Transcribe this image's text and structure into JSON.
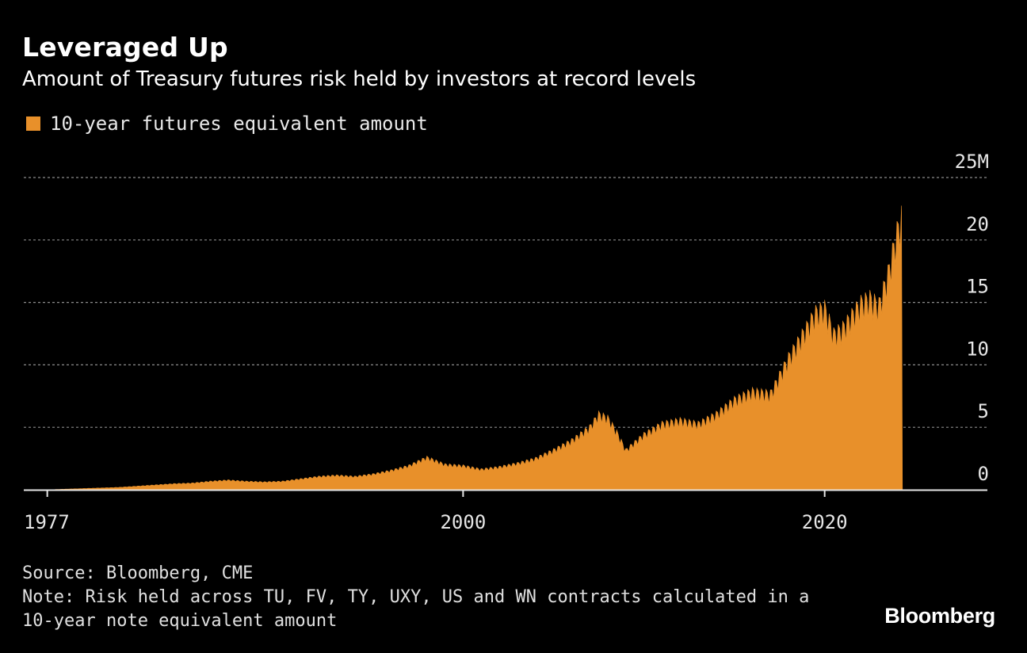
{
  "title": "Leveraged Up",
  "subtitle": "Amount of Treasury futures risk held by investors at record levels",
  "legend_label": "10-year futures equivalent amount",
  "source": "Source: Bloomberg, CME",
  "note": "Note: Risk held across TU, FV, TY, UXY, US and WN contracts calculated in a 10-year note equivalent amount",
  "brand": "Bloomberg",
  "colors": {
    "series": "#e8902a",
    "background": "#000000",
    "grid": "#8c8c8c"
  },
  "chart_data": {
    "type": "area",
    "title": "Leveraged Up",
    "subtitle": "Amount of Treasury futures risk held by investors at record levels",
    "series": [
      {
        "name": "10-year futures equivalent amount",
        "color": "#e8902a",
        "x": [
          1977,
          1978,
          1979,
          1980,
          1981,
          1982,
          1983,
          1984,
          1985,
          1986,
          1987,
          1988,
          1989,
          1990,
          1991,
          1992,
          1993,
          1994,
          1995,
          1996,
          1997,
          1998,
          1999,
          2000,
          2001,
          2002,
          2003,
          2004,
          2005,
          2006,
          2007,
          2007.5,
          2008,
          2008.5,
          2009,
          2010,
          2011,
          2012,
          2013,
          2014,
          2015,
          2016,
          2017,
          2018,
          2019,
          2019.5,
          2020,
          2020.5,
          2021,
          2022,
          2022.5,
          2023,
          2023.5,
          2024,
          2024.3
        ],
        "values": [
          0.0,
          0.05,
          0.1,
          0.15,
          0.2,
          0.3,
          0.4,
          0.5,
          0.55,
          0.7,
          0.8,
          0.7,
          0.65,
          0.7,
          0.9,
          1.1,
          1.2,
          1.1,
          1.3,
          1.6,
          2.0,
          2.7,
          2.1,
          2.0,
          1.7,
          1.9,
          2.2,
          2.6,
          3.3,
          4.1,
          5.2,
          6.3,
          6.0,
          4.8,
          3.3,
          4.6,
          5.5,
          5.8,
          5.5,
          6.3,
          7.5,
          8.2,
          8.0,
          11.0,
          13.5,
          14.8,
          15.2,
          13.0,
          13.5,
          15.6,
          16.0,
          15.4,
          18.0,
          21.5,
          23.0
        ]
      }
    ],
    "ylabel": "",
    "xlabel": "",
    "y_ticks": [
      "0",
      "5",
      "10",
      "15",
      "20",
      "25M"
    ],
    "y_tick_values": [
      0,
      5,
      10,
      15,
      20,
      25
    ],
    "x_ticks": [
      "1977",
      "2000",
      "2020"
    ],
    "x_tick_values": [
      1977,
      2000,
      2020
    ],
    "xlim": [
      1975.7,
      2029
    ],
    "ylim": [
      0,
      25
    ],
    "grid": true,
    "legend": "top-left"
  }
}
